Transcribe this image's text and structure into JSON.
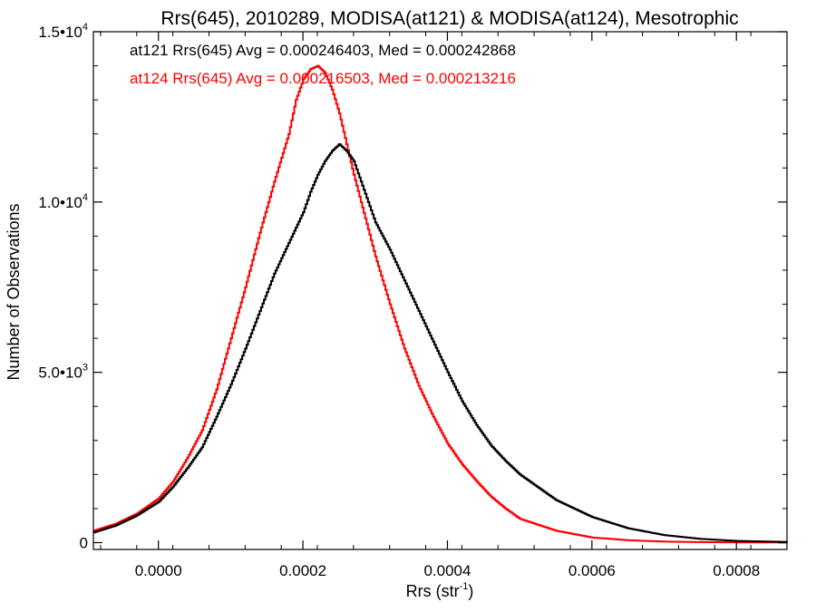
{
  "chart_data": {
    "type": "line",
    "title": "Rrs(645), 2010289, MODISA(at121) & MODISA(at124), Mesotrophic",
    "xlabel": {
      "main": "Rrs (str",
      "sup": "-1",
      "close": ")"
    },
    "ylabel": "Number of Observations",
    "xlim": [
      -9e-05,
      0.00087
    ],
    "ylim": [
      -200,
      15000
    ],
    "x_ticks": [
      {
        "value": 0.0,
        "label": "0.0000"
      },
      {
        "value": 0.0002,
        "label": "0.0002"
      },
      {
        "value": 0.0004,
        "label": "0.0004"
      },
      {
        "value": 0.0006,
        "label": "0.0006"
      },
      {
        "value": 0.0008,
        "label": "0.0008"
      }
    ],
    "y_ticks": [
      {
        "value": 0,
        "mant": "0",
        "sup": ""
      },
      {
        "value": 5000,
        "mant": "5.0•10",
        "sup": "3"
      },
      {
        "value": 10000,
        "mant": "1.0•10",
        "sup": "4"
      },
      {
        "value": 15000,
        "mant": "1.5•10",
        "sup": "4"
      }
    ],
    "annotations": [
      {
        "text": "at121 Rrs(645) Avg = 0.000246403, Med = 0.000242868",
        "color": "#000000"
      },
      {
        "text": "at124 Rrs(645) Avg = 0.000216503, Med = 0.000213216",
        "color": "#ff0000"
      }
    ],
    "series": [
      {
        "name": "at121",
        "color": "#000000",
        "x": [
          -9e-05,
          -6e-05,
          -3e-05,
          0.0,
          2e-05,
          4e-05,
          6e-05,
          8e-05,
          0.0001,
          0.00012,
          0.00014,
          0.00016,
          0.00018,
          0.0002,
          0.00021,
          0.00022,
          0.00023,
          0.00024,
          0.00025,
          0.00026,
          0.00027,
          0.00028,
          0.0003,
          0.00032,
          0.00034,
          0.00036,
          0.00038,
          0.0004,
          0.00042,
          0.00044,
          0.00046,
          0.00048,
          0.0005,
          0.00055,
          0.0006,
          0.00065,
          0.0007,
          0.00075,
          0.0008,
          0.00087
        ],
        "y": [
          300,
          500,
          800,
          1200,
          1650,
          2200,
          2800,
          3700,
          4650,
          5700,
          6800,
          7900,
          8800,
          9700,
          10300,
          10800,
          11200,
          11500,
          11700,
          11500,
          11200,
          10600,
          9400,
          8600,
          7700,
          6800,
          5900,
          5000,
          4150,
          3450,
          2850,
          2400,
          2000,
          1250,
          750,
          420,
          220,
          110,
          50,
          20
        ]
      },
      {
        "name": "at124",
        "color": "#ff0000",
        "x": [
          -9e-05,
          -6e-05,
          -3e-05,
          0.0,
          2e-05,
          4e-05,
          6e-05,
          8e-05,
          0.0001,
          0.00012,
          0.00014,
          0.00016,
          0.00018,
          0.00019,
          0.0002,
          0.00021,
          0.00022,
          0.00023,
          0.00024,
          0.00025,
          0.00026,
          0.00027,
          0.00028,
          0.00029,
          0.0003,
          0.00032,
          0.00034,
          0.00036,
          0.00038,
          0.0004,
          0.00042,
          0.00044,
          0.00046,
          0.00048,
          0.0005,
          0.00055,
          0.0006,
          0.00065,
          0.0007,
          0.00075,
          0.0008,
          0.00087
        ],
        "y": [
          350,
          550,
          850,
          1300,
          1800,
          2500,
          3300,
          4500,
          6000,
          7500,
          9100,
          10600,
          12000,
          13000,
          13600,
          13900,
          14000,
          13800,
          13300,
          12600,
          11700,
          10800,
          10000,
          9200,
          8400,
          7000,
          5700,
          4600,
          3700,
          2900,
          2300,
          1800,
          1350,
          1000,
          700,
          350,
          150,
          70,
          30,
          15,
          8,
          4
        ]
      }
    ]
  }
}
